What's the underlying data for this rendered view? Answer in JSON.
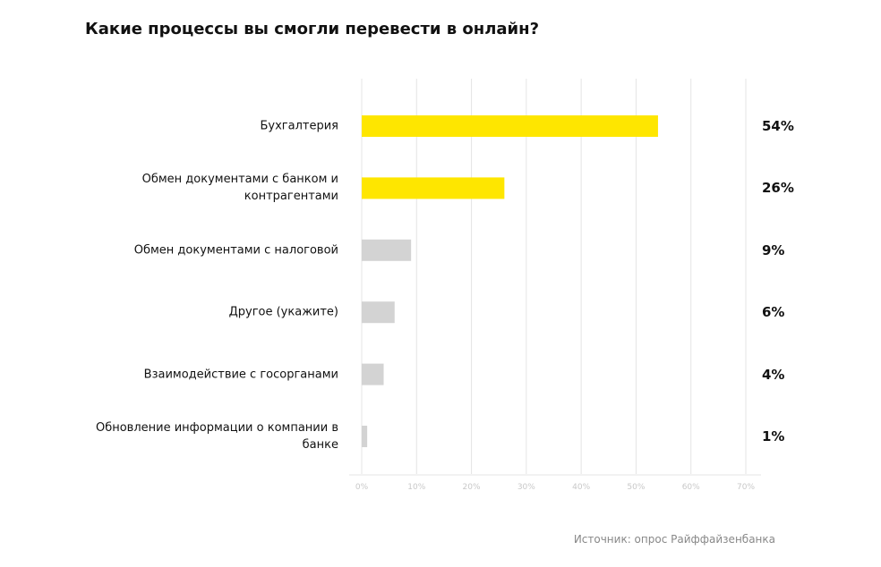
{
  "chart_data": {
    "type": "hbar",
    "title": "Какие процессы вы смогли перевести в онлайн?",
    "categories": [
      "Бухгалтерия",
      "Обмен документами с банком и контрагентами",
      "Обмен документами с налоговой",
      "Другое (укажите)",
      "Взаимодействие с госорганами",
      "Обновление информации о компании в банке"
    ],
    "values": [
      54,
      26,
      9,
      6,
      4,
      1
    ],
    "value_labels": [
      "54%",
      "26%",
      "9%",
      "6%",
      "4%",
      "1%"
    ],
    "colors": [
      "#fee600",
      "#fee600",
      "#d3d3d3",
      "#d3d3d3",
      "#d3d3d3",
      "#d3d3d3"
    ],
    "xlim": [
      0,
      70
    ],
    "xticks": [
      {
        "value": 0,
        "label": "0%"
      },
      {
        "value": 10,
        "label": "10%"
      },
      {
        "value": 20,
        "label": "20%"
      },
      {
        "value": 30,
        "label": "30%"
      },
      {
        "value": 40,
        "label": "40%"
      },
      {
        "value": 50,
        "label": "50%"
      },
      {
        "value": 60,
        "label": "60%"
      },
      {
        "value": 70,
        "label": "70%"
      }
    ],
    "grid": true,
    "source": "Источник: опрос Райффайзенбанка"
  }
}
